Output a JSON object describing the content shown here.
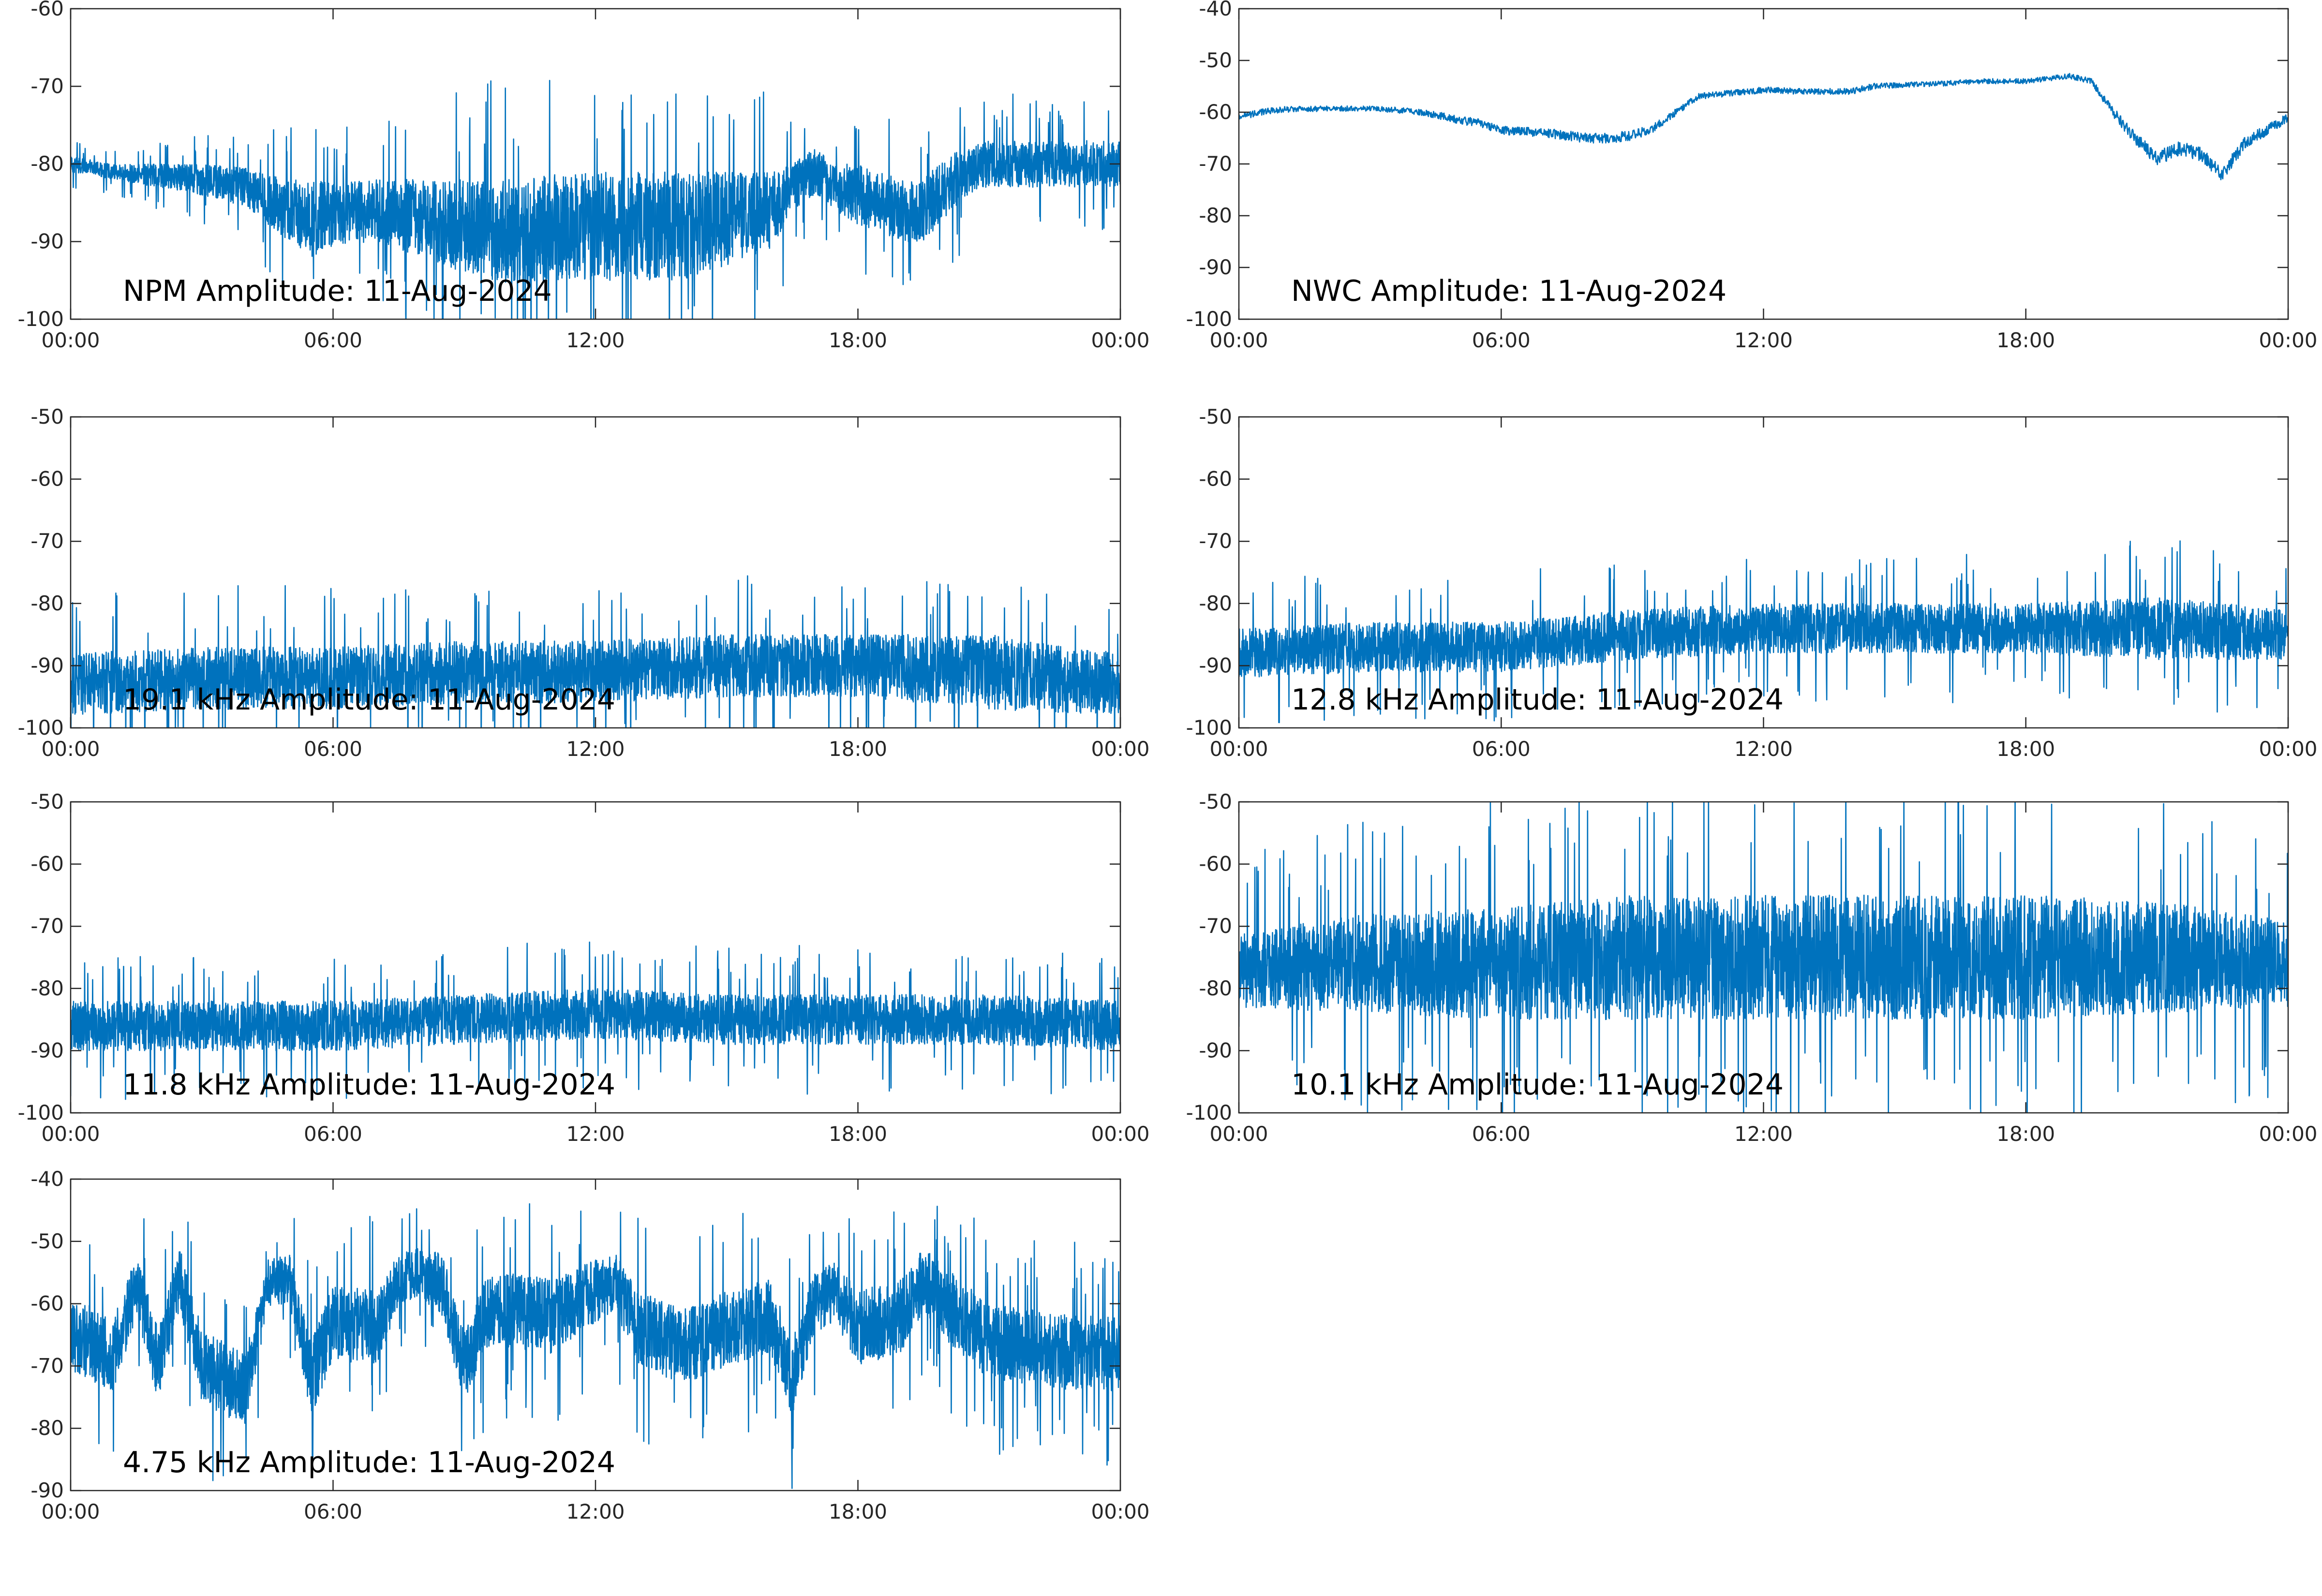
{
  "colors": {
    "series": "#0072bd",
    "axes": "#262626",
    "background": "#ffffff"
  },
  "chart_data": [
    {
      "type": "line",
      "title": "NPM Amplitude: 11-Aug-2024",
      "xlabel": "",
      "ylabel": "",
      "xlim": [
        "00:00",
        "24:00"
      ],
      "xticks": [
        "00:00",
        "06:00",
        "12:00",
        "18:00",
        "00:00"
      ],
      "ylim": [
        -100,
        -60
      ],
      "yticks": [
        "-60",
        "-70",
        "-80",
        "-90",
        "-100"
      ],
      "grid": false,
      "series": [
        {
          "x": [
            0,
            1,
            2,
            3,
            4,
            5,
            5.5,
            6,
            7,
            8,
            9,
            10,
            10.5,
            11,
            12,
            13,
            14,
            15,
            16,
            16.5,
            17,
            17.5,
            18,
            19,
            19.5,
            20,
            20.5,
            20.8,
            21,
            21.5,
            22,
            23,
            24
          ],
          "mean": [
            -80,
            -81,
            -81.5,
            -82,
            -83,
            -86,
            -87,
            -86.5,
            -86,
            -87,
            -88,
            -89,
            -89,
            -88,
            -88,
            -88,
            -88,
            -87,
            -86,
            -83,
            -81,
            -83,
            -84,
            -86,
            -86,
            -83,
            -81,
            -80,
            -80,
            -80,
            -80,
            -80,
            -80
          ],
          "spread": [
            1,
            1,
            1.5,
            2,
            2.5,
            4,
            5,
            4,
            4,
            5,
            6,
            7,
            7,
            7,
            7,
            7,
            7,
            6,
            5,
            3,
            3,
            3,
            4,
            4,
            4,
            4,
            3,
            3,
            3,
            3,
            3,
            3,
            3
          ]
        }
      ]
    },
    {
      "type": "line",
      "title": "NWC Amplitude: 11-Aug-2024",
      "xlabel": "",
      "ylabel": "",
      "xlim": [
        "00:00",
        "24:00"
      ],
      "xticks": [
        "00:00",
        "06:00",
        "12:00",
        "18:00",
        "00:00"
      ],
      "ylim": [
        -100,
        -40
      ],
      "yticks": [
        "-40",
        "-50",
        "-60",
        "-70",
        "-80",
        "-90",
        "-100"
      ],
      "grid": false,
      "series": [
        {
          "x": [
            0,
            0.5,
            1,
            2,
            3,
            4,
            4.5,
            5,
            5.5,
            6,
            7,
            8,
            8.5,
            9,
            9.5,
            10,
            10.5,
            11,
            12,
            13,
            14,
            14.5,
            15,
            16,
            17,
            18,
            18.5,
            19,
            19.5,
            20,
            20.5,
            21,
            21.5,
            22,
            22.5,
            23,
            24
          ],
          "mean": [
            -61,
            -60,
            -59.5,
            -59.3,
            -59.3,
            -59.8,
            -60.5,
            -61.5,
            -62,
            -63.5,
            -64,
            -65,
            -65,
            -64.5,
            -63,
            -60,
            -57,
            -56.5,
            -55.7,
            -56,
            -56,
            -55,
            -54.8,
            -54.5,
            -54,
            -54,
            -53.5,
            -53,
            -54,
            -60,
            -65,
            -69,
            -67,
            -68,
            -72,
            -66,
            -61
          ],
          "spread": [
            0.6,
            0.6,
            0.6,
            0.5,
            0.5,
            0.6,
            0.7,
            0.8,
            0.8,
            0.8,
            0.9,
            1,
            1,
            1,
            0.8,
            0.7,
            0.6,
            0.6,
            0.6,
            0.6,
            0.6,
            0.6,
            0.5,
            0.5,
            0.5,
            0.5,
            0.5,
            0.5,
            0.6,
            1,
            1.2,
            1.4,
            1.4,
            1.4,
            1.4,
            1.2,
            0.9
          ]
        }
      ]
    },
    {
      "type": "line",
      "title": "19.1 kHz Amplitude: 11-Aug-2024",
      "xlabel": "",
      "ylabel": "",
      "xlim": [
        "00:00",
        "24:00"
      ],
      "xticks": [
        "00:00",
        "06:00",
        "12:00",
        "18:00",
        "00:00"
      ],
      "ylim": [
        -100,
        -50
      ],
      "yticks": [
        "-50",
        "-60",
        "-70",
        "-80",
        "-90",
        "-100"
      ],
      "grid": false,
      "series": [
        {
          "x": [
            0,
            3,
            6,
            9,
            12,
            15,
            18,
            21,
            24
          ],
          "mean": [
            -93,
            -92,
            -92,
            -91,
            -91,
            -90,
            -90,
            -91,
            -93
          ],
          "spread": [
            5,
            5,
            5,
            5,
            5,
            5,
            5,
            6,
            5
          ]
        }
      ]
    },
    {
      "type": "line",
      "title": "12.8 kHz Amplitude: 11-Aug-2024",
      "xlabel": "",
      "ylabel": "",
      "xlim": [
        "00:00",
        "24:00"
      ],
      "xticks": [
        "00:00",
        "06:00",
        "12:00",
        "18:00",
        "00:00"
      ],
      "ylim": [
        -100,
        -50
      ],
      "yticks": [
        "-50",
        "-60",
        "-70",
        "-80",
        "-90",
        "-100"
      ],
      "grid": false,
      "series": [
        {
          "x": [
            0,
            3,
            6,
            9,
            12,
            15,
            18,
            21,
            24
          ],
          "mean": [
            -88,
            -87,
            -87,
            -85,
            -84,
            -84,
            -84,
            -84,
            -85
          ],
          "spread": [
            4,
            4,
            4,
            4,
            4,
            4,
            4,
            5,
            4
          ]
        }
      ]
    },
    {
      "type": "line",
      "title": "11.8 kHz Amplitude: 11-Aug-2024",
      "xlabel": "",
      "ylabel": "",
      "xlim": [
        "00:00",
        "24:00"
      ],
      "xticks": [
        "00:00",
        "06:00",
        "12:00",
        "18:00",
        "00:00"
      ],
      "ylim": [
        -100,
        -50
      ],
      "yticks": [
        "-50",
        "-60",
        "-70",
        "-80",
        "-90",
        "-100"
      ],
      "grid": false,
      "series": [
        {
          "x": [
            0,
            3,
            6,
            9,
            12,
            15,
            18,
            21,
            24
          ],
          "mean": [
            -86,
            -86,
            -86,
            -85,
            -84,
            -85,
            -85,
            -85,
            -86
          ],
          "spread": [
            4,
            4,
            4,
            4,
            4,
            4,
            4,
            4,
            4
          ]
        }
      ]
    },
    {
      "type": "line",
      "title": "10.1 kHz Amplitude: 11-Aug-2024",
      "xlabel": "",
      "ylabel": "",
      "xlim": [
        "00:00",
        "24:00"
      ],
      "xticks": [
        "00:00",
        "06:00",
        "12:00",
        "18:00",
        "00:00"
      ],
      "ylim": [
        -100,
        -50
      ],
      "yticks": [
        "-50",
        "-60",
        "-70",
        "-80",
        "-90",
        "-100"
      ],
      "grid": false,
      "series": [
        {
          "x": [
            0,
            3,
            6,
            9,
            12,
            15,
            18,
            21,
            24
          ],
          "mean": [
            -77,
            -76,
            -76,
            -75,
            -75,
            -75,
            -75,
            -75,
            -76
          ],
          "spread": [
            6,
            8,
            9,
            10,
            10,
            10,
            10,
            9,
            7
          ]
        }
      ]
    },
    {
      "type": "line",
      "title": "4.75 kHz Amplitude: 11-Aug-2024",
      "xlabel": "",
      "ylabel": "",
      "xlim": [
        "00:00",
        "24:00"
      ],
      "xticks": [
        "00:00",
        "06:00",
        "12:00",
        "18:00",
        "00:00"
      ],
      "ylim": [
        -90,
        -40
      ],
      "yticks": [
        "-40",
        "-50",
        "-60",
        "-70",
        "-80",
        "-90"
      ],
      "grid": false,
      "series": [
        {
          "x": [
            0,
            1,
            1.5,
            2,
            2.5,
            3,
            3.5,
            4,
            4.5,
            5,
            5.5,
            6,
            7,
            7.5,
            8,
            8.5,
            9,
            9.5,
            10,
            11,
            12,
            12.5,
            13,
            14,
            15,
            16,
            16.5,
            17,
            17.5,
            18,
            19,
            19.5,
            20,
            21,
            22,
            23,
            24
          ],
          "mean": [
            -65,
            -68,
            -57,
            -70,
            -56,
            -70,
            -72,
            -74,
            -57,
            -56,
            -72,
            -63,
            -64,
            -56,
            -55,
            -57,
            -70,
            -62,
            -61,
            -62,
            -58,
            -57,
            -64,
            -67,
            -64,
            -62,
            -72,
            -60,
            -58,
            -64,
            -62,
            -56,
            -60,
            -66,
            -67,
            -68,
            -68
          ],
          "spread": [
            6,
            6,
            5,
            6,
            5,
            6,
            6,
            6,
            4,
            4,
            6,
            6,
            6,
            4,
            4,
            5,
            6,
            6,
            6,
            6,
            5,
            5,
            6,
            6,
            6,
            6,
            6,
            5,
            5,
            6,
            6,
            5,
            6,
            6,
            6,
            6,
            6
          ]
        }
      ]
    }
  ]
}
